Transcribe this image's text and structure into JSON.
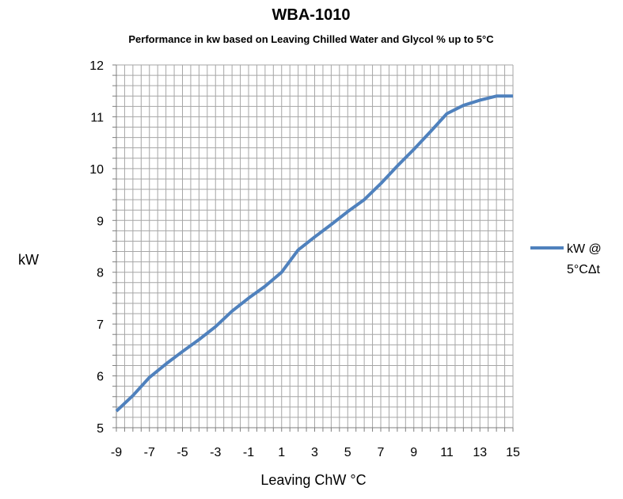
{
  "chart_data": {
    "type": "line",
    "title": "WBA-1010",
    "subtitle": "Performance in kw based on Leaving Chilled Water and Glycol % up to 5°C",
    "xlabel": "Leaving ChW °C",
    "ylabel": "kW",
    "xlim": [
      -9,
      15
    ],
    "ylim": [
      5,
      12
    ],
    "x_ticks": [
      -9,
      -7,
      -5,
      -3,
      -1,
      1,
      3,
      5,
      7,
      9,
      11,
      13,
      15
    ],
    "y_ticks": [
      5,
      6,
      7,
      8,
      9,
      10,
      11,
      12
    ],
    "x_minor_step": 0.5,
    "y_minor_step": 0.2,
    "grid": true,
    "legend_position": "right",
    "series": [
      {
        "name": "kW @\n5°CΔt",
        "legend_lines": [
          "kW @",
          "5°CΔt"
        ],
        "color": "#4f81bd",
        "x": [
          -9,
          -8,
          -7,
          -6,
          -5,
          -4,
          -3,
          -2,
          -1,
          0,
          1,
          2,
          3,
          4,
          5,
          6,
          7,
          8,
          9,
          10,
          11,
          12,
          13,
          14,
          15
        ],
        "y": [
          5.32,
          5.62,
          5.97,
          6.23,
          6.47,
          6.7,
          6.95,
          7.25,
          7.5,
          7.73,
          8.0,
          8.43,
          8.68,
          8.92,
          9.17,
          9.4,
          9.71,
          10.05,
          10.37,
          10.71,
          11.06,
          11.22,
          11.32,
          11.4,
          11.4
        ]
      }
    ]
  }
}
